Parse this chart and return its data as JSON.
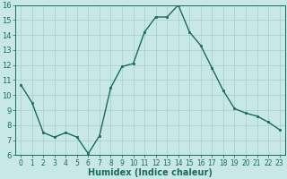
{
  "x": [
    0,
    1,
    2,
    3,
    4,
    5,
    6,
    7,
    8,
    9,
    10,
    11,
    12,
    13,
    14,
    15,
    16,
    17,
    18,
    19,
    20,
    21,
    22,
    23
  ],
  "y": [
    10.7,
    9.5,
    7.5,
    7.2,
    7.5,
    7.2,
    6.1,
    7.3,
    10.5,
    11.9,
    12.1,
    14.2,
    15.2,
    15.2,
    16.0,
    14.2,
    13.3,
    11.8,
    10.3,
    9.1,
    8.8,
    8.6,
    8.2,
    7.7
  ],
  "xlabel": "Humidex (Indice chaleur)",
  "ylim": [
    6,
    16
  ],
  "xlim": [
    -0.5,
    23.5
  ],
  "yticks": [
    6,
    7,
    8,
    9,
    10,
    11,
    12,
    13,
    14,
    15,
    16
  ],
  "xticks": [
    0,
    1,
    2,
    3,
    4,
    5,
    6,
    7,
    8,
    9,
    10,
    11,
    12,
    13,
    14,
    15,
    16,
    17,
    18,
    19,
    20,
    21,
    22,
    23
  ],
  "line_color": "#1a6b5a",
  "marker_color": "#1a6b5a",
  "bg_color": "#c8e8e8",
  "grid_color": "#a8cccc"
}
